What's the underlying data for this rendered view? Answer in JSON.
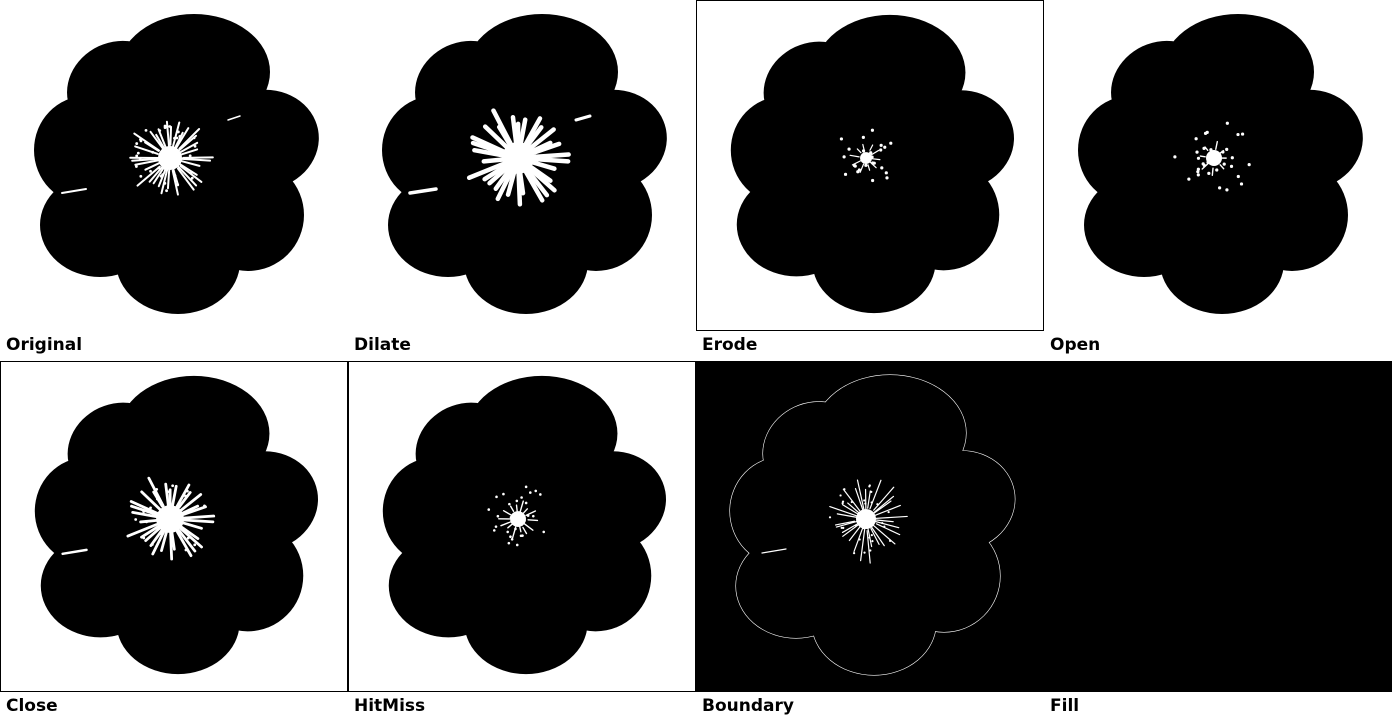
{
  "panels": [
    {
      "id": "original",
      "label": "Original",
      "variant": "original",
      "background": "#ffffff",
      "framed": false
    },
    {
      "id": "dilate",
      "label": "Dilate",
      "variant": "dilate",
      "background": "#ffffff",
      "framed": false
    },
    {
      "id": "erode",
      "label": "Erode",
      "variant": "erode",
      "background": "#ffffff",
      "framed": true
    },
    {
      "id": "open",
      "label": "Open",
      "variant": "open",
      "background": "#ffffff",
      "framed": false
    },
    {
      "id": "close",
      "label": "Close",
      "variant": "close",
      "background": "#ffffff",
      "framed": true
    },
    {
      "id": "hitmiss",
      "label": "HitMiss",
      "variant": "hitmiss",
      "background": "#ffffff",
      "framed": true
    },
    {
      "id": "boundary",
      "label": "Boundary",
      "variant": "boundary",
      "background": "#000000",
      "framed": false
    },
    {
      "id": "fill",
      "label": "Fill",
      "variant": "fill",
      "background": "#000000",
      "framed": false
    }
  ],
  "colors": {
    "foreground": "#000000",
    "highlight": "#ffffff"
  }
}
